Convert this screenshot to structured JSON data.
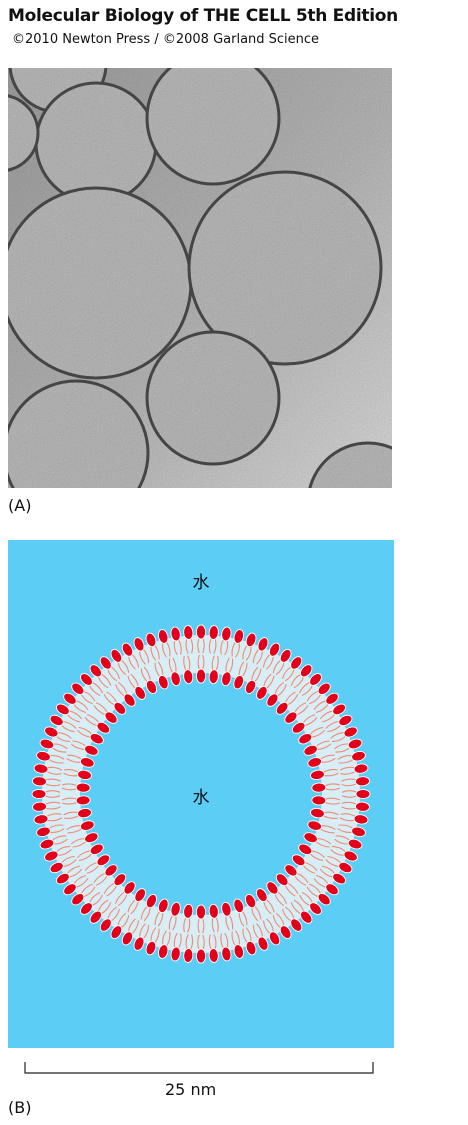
{
  "header": {
    "title": "Molecular Biology of THE CELL 5th Edition",
    "copyright": "©2010 Newton Press / ©2008 Garland Science"
  },
  "figure": {
    "panel_a_label": "(A)",
    "panel_b_label": "(B)",
    "water_outside": "水",
    "water_inside": "水",
    "scale_label": "25 nm"
  },
  "colors": {
    "water": "#5ccdf5",
    "head": "#e2001a",
    "tail": "#f08a72",
    "bilayer_gap": "#d8eef6"
  }
}
